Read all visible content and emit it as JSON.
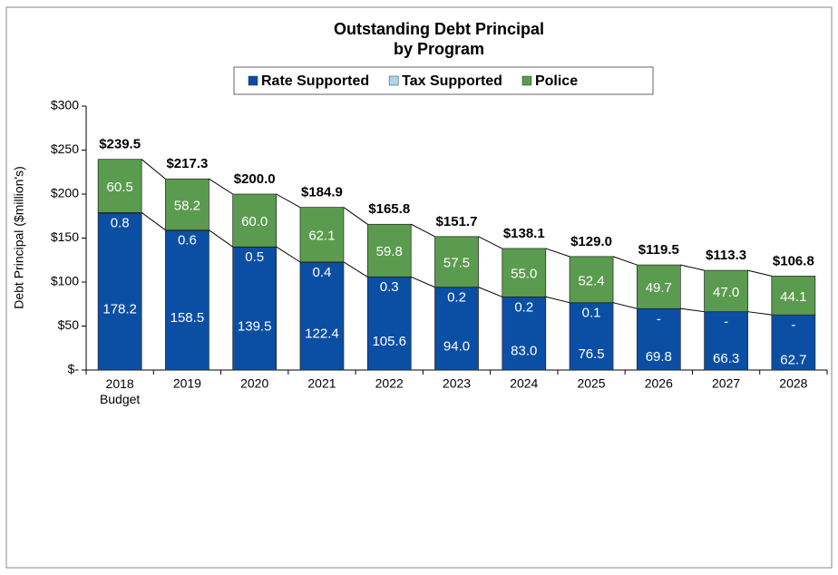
{
  "chart_data": {
    "type": "stacked_bar",
    "title": "Outstanding Debt Principal",
    "subtitle": "by Program",
    "y_label": "Debt Principal ($million's)",
    "categories": [
      "2018 Budget",
      "2019",
      "2020",
      "2021",
      "2022",
      "2023",
      "2024",
      "2025",
      "2026",
      "2027",
      "2028"
    ],
    "series": [
      {
        "name": "Rate Supported",
        "color": "#0b4fa5",
        "values": [
          178.2,
          158.5,
          139.5,
          122.4,
          105.6,
          94.0,
          83.0,
          76.5,
          69.8,
          66.3,
          62.7
        ],
        "value_labels": [
          "178.2",
          "158.5",
          "139.5",
          "122.4",
          "105.6",
          "94.0",
          "83.0",
          "76.5",
          "69.8",
          "66.3",
          "62.7"
        ]
      },
      {
        "name": "Tax Supported",
        "color": "#acd6f0",
        "values": [
          0.8,
          0.6,
          0.5,
          0.4,
          0.3,
          0.2,
          0.2,
          0.1,
          0,
          0,
          0
        ],
        "value_labels": [
          "0.8",
          "0.6",
          "0.5",
          "0.4",
          "0.3",
          "0.2",
          "0.2",
          "0.1",
          "-",
          "-",
          "-"
        ]
      },
      {
        "name": "Police",
        "color": "#5b9b4f",
        "values": [
          60.5,
          58.2,
          60.0,
          62.1,
          59.8,
          57.5,
          55.0,
          52.4,
          49.7,
          47.0,
          44.1
        ],
        "value_labels": [
          "60.5",
          "58.2",
          "60.0",
          "62.1",
          "59.8",
          "57.5",
          "55.0",
          "52.4",
          "49.7",
          "47.0",
          "44.1"
        ]
      }
    ],
    "totals": [
      239.5,
      217.3,
      200.0,
      184.9,
      165.8,
      151.7,
      138.1,
      129.0,
      119.5,
      113.3,
      106.8
    ],
    "total_labels": [
      "$239.5",
      "$217.3",
      "$200.0",
      "$184.9",
      "$165.8",
      "$151.7",
      "$138.1",
      "$129.0",
      "$119.5",
      "$113.3",
      "$106.8"
    ],
    "ylim": [
      0,
      300
    ],
    "yticks": [
      {
        "value": 0,
        "label": "$-"
      },
      {
        "value": 50,
        "label": "$50"
      },
      {
        "value": 100,
        "label": "$100"
      },
      {
        "value": 150,
        "label": "$150"
      },
      {
        "value": 200,
        "label": "$200"
      },
      {
        "value": 250,
        "label": "$250"
      },
      {
        "value": 300,
        "label": "$300"
      }
    ],
    "legend": "top"
  }
}
